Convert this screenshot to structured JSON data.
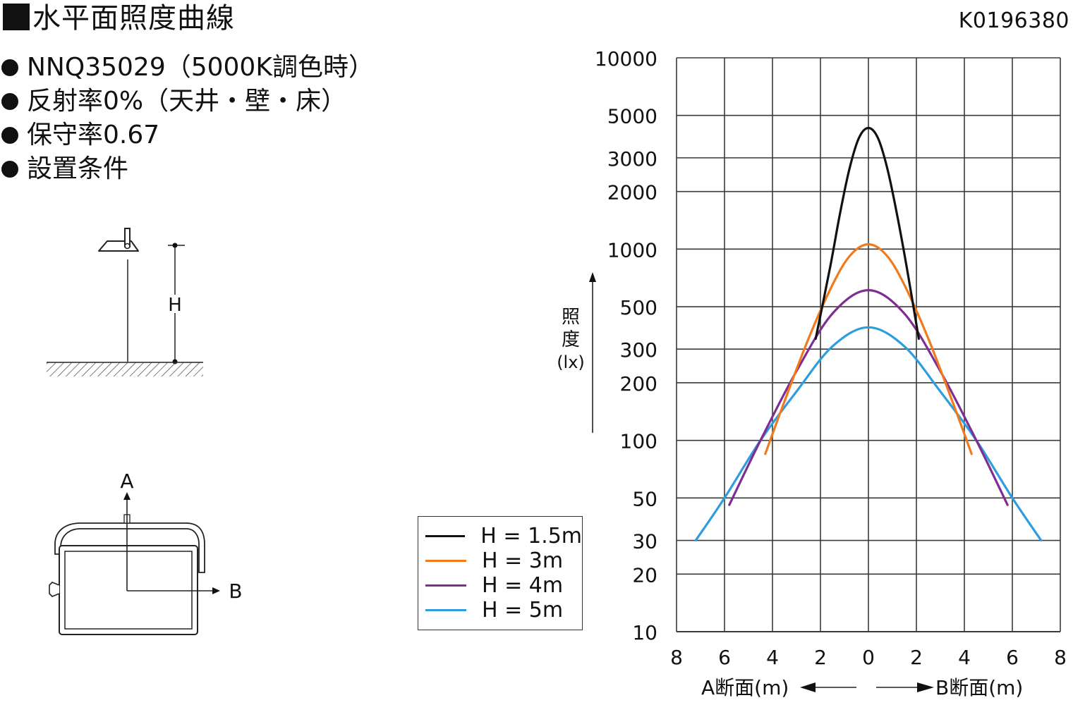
{
  "header": {
    "title": "水平面照度曲線",
    "code": "K0196380"
  },
  "conditions": [
    "NNQ35029（5000K調色時）",
    "反射率0%（天井・壁・床）",
    "保守率0.67",
    "設置条件"
  ],
  "installation": {
    "height_label": "H",
    "axis_a_label": "A",
    "axis_b_label": "B"
  },
  "colors": {
    "h15": "#111111",
    "h3": "#f07a1e",
    "h4": "#7e2e93",
    "h5": "#2e9ddd",
    "grid": "#3a3a3a"
  },
  "chart_data": {
    "type": "line",
    "y_scale": "log",
    "ylim": [
      10,
      10000
    ],
    "xlim": [
      -8,
      8
    ],
    "y_ticks": [
      10,
      20,
      30,
      50,
      100,
      200,
      300,
      500,
      1000,
      2000,
      3000,
      5000,
      10000
    ],
    "x_ticks": [
      -8,
      -6,
      -4,
      -2,
      0,
      2,
      4,
      6,
      8
    ],
    "x_tick_labels": [
      "8",
      "6",
      "4",
      "2",
      "0",
      "2",
      "4",
      "6",
      "8"
    ],
    "ylabel": "照度(lx)",
    "xlabel_left": "A断面(m)",
    "xlabel_right": "B断面(m)",
    "legend_position": "bottom-left",
    "series": [
      {
        "name": "H = 1.5m",
        "color": "#111111",
        "x": [
          -2.2,
          -1.6,
          -1.2,
          -0.8,
          -0.4,
          0,
          0.4,
          0.8,
          1.2,
          1.6,
          2.1
        ],
        "y": [
          340,
          800,
          1500,
          2600,
          3800,
          4300,
          3800,
          2600,
          1500,
          800,
          340
        ]
      },
      {
        "name": "H = 3m",
        "color": "#f07a1e",
        "x": [
          -4.3,
          -3.5,
          -2.5,
          -1.5,
          -0.75,
          0,
          0.75,
          1.5,
          2.5,
          3.5,
          4.3
        ],
        "y": [
          85,
          160,
          340,
          650,
          930,
          1060,
          930,
          650,
          340,
          160,
          85
        ]
      },
      {
        "name": "H = 4m",
        "color": "#7e2e93",
        "x": [
          -5.8,
          -4.5,
          -3,
          -1.5,
          0,
          1.5,
          3,
          4.5,
          5.8
        ],
        "y": [
          46,
          100,
          230,
          460,
          610,
          460,
          230,
          100,
          46
        ]
      },
      {
        "name": "H = 5m",
        "color": "#2e9ddd",
        "x": [
          -7.2,
          -6,
          -4.5,
          -3,
          -1.5,
          0,
          1.5,
          3,
          4.5,
          6,
          7.2
        ],
        "y": [
          30,
          50,
          100,
          180,
          310,
          390,
          310,
          180,
          100,
          50,
          30
        ]
      }
    ]
  }
}
